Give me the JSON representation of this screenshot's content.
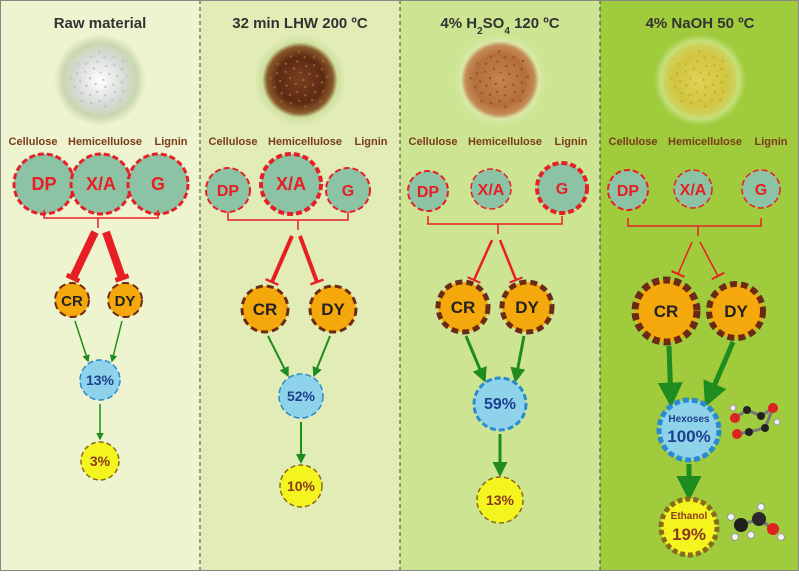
{
  "panels": [
    {
      "title": "Raw  material",
      "title_parts": [],
      "bg": "#eef4cf",
      "sample": "white-powder",
      "labels": {
        "cellulose": "Cellulose",
        "hemicellulose": "Hemicellulose",
        "lignin": "Lignin"
      },
      "components": [
        "DP",
        "X/A",
        "G"
      ],
      "enzymes": [
        "CR",
        "DY"
      ],
      "yield1": "13%",
      "yield2": "3%"
    },
    {
      "title": "32 min LHW  200 ºC",
      "title_parts": [],
      "bg": "#e2ecb6",
      "sample": "brown-fiber",
      "labels": {
        "cellulose": "Cellulose",
        "hemicellulose": "Hemicellulose",
        "lignin": "Lignin"
      },
      "components": [
        "DP",
        "X/A",
        "G"
      ],
      "enzymes": [
        "CR",
        "DY"
      ],
      "yield1": "52%",
      "yield2": "10%"
    },
    {
      "title": "",
      "title_parts": [
        "4% H",
        "2",
        "SO",
        "4",
        "  120 ºC"
      ],
      "bg": "#cde592",
      "sample": "tan-fiber",
      "labels": {
        "cellulose": "Cellulose",
        "hemicellulose": "Hemicellulose",
        "lignin": "Lignin"
      },
      "components": [
        "DP",
        "X/A",
        "G"
      ],
      "enzymes": [
        "CR",
        "DY"
      ],
      "yield1": "59%",
      "yield2": "13%"
    },
    {
      "title": "4% NaOH  50 ºC",
      "title_parts": [],
      "bg": "#9fcb3c",
      "sample": "yellow-powder",
      "labels": {
        "cellulose": "Cellulose",
        "hemicellulose": "Hemicellulose",
        "lignin": "Lignin"
      },
      "components": [
        "DP",
        "X/A",
        "G"
      ],
      "enzymes": [
        "CR",
        "DY"
      ],
      "yield1_label": "Hexoses",
      "yield1": "100%",
      "yield2_label": "Ethanol",
      "yield2": "19%"
    }
  ],
  "colors": {
    "component_fill": "#8cc3a5",
    "component_text": "#e81e25",
    "component_stroke": "#e81e25",
    "enzyme_fill": "#f5a80b",
    "enzyme_stroke": "#6b2a14",
    "yield1_fill": "#8fd3ea",
    "yield1_stroke": "#2a8bd0",
    "yield1_text": "#1d3f8f",
    "yield2_fill": "#f4f51e",
    "yield2_stroke": "#8a6a1a",
    "yield2_text": "#8b3a1e",
    "arrow": "#1f8c1f",
    "inhibit": "#e81e25",
    "label_text": "#7a3b1a",
    "title_text": "#333333",
    "divider": "#444444"
  },
  "icons": [
    "hexose-molecule-icon",
    "ethanol-molecule-icon"
  ]
}
